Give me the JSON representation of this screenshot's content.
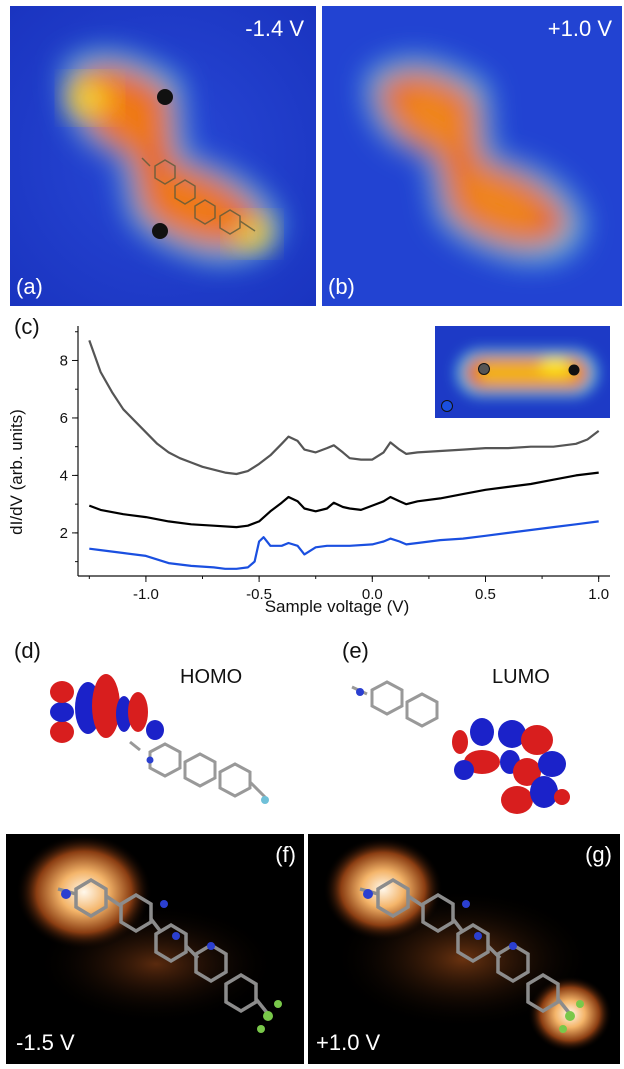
{
  "panels": {
    "a": {
      "label": "(a)",
      "voltage": "-1.4 V"
    },
    "b": {
      "label": "(b)",
      "voltage": "+1.0 V"
    },
    "c": {
      "label": "(c)"
    },
    "d": {
      "label": "(d)",
      "orbital": "HOMO"
    },
    "e": {
      "label": "(e)",
      "orbital": "LUMO"
    },
    "f": {
      "label": "(f)",
      "voltage": "-1.5 V"
    },
    "g": {
      "label": "(g)",
      "voltage": "+1.0 V"
    }
  },
  "colors": {
    "stm_background": "#1f3cc9",
    "series_top": "#555555",
    "series_middle": "#000000",
    "series_bottom": "#1a4fe0",
    "homo_lobe_red": "#d81e1e",
    "homo_lobe_blue": "#1b22c9",
    "sim_glow": "#f4a24a"
  },
  "chart_data": {
    "type": "line",
    "xlabel": "Sample voltage (V)",
    "ylabel": "dI/dV (arb. units)",
    "xlim": [
      -1.3,
      1.05
    ],
    "ylim": [
      0.5,
      9.2
    ],
    "xticks": [
      "-1.0",
      "-0.5",
      "0.0",
      "0.5",
      "1.0"
    ],
    "xtick_values": [
      -1.0,
      -0.5,
      0.0,
      0.5,
      1.0
    ],
    "yticks": [
      "2",
      "4",
      "6",
      "8"
    ],
    "ytick_values": [
      2,
      4,
      6,
      8
    ],
    "grid": false,
    "series": [
      {
        "color": "#555555",
        "x": [
          -1.25,
          -1.2,
          -1.15,
          -1.1,
          -1.05,
          -1.0,
          -0.95,
          -0.9,
          -0.85,
          -0.8,
          -0.75,
          -0.7,
          -0.65,
          -0.6,
          -0.55,
          -0.5,
          -0.45,
          -0.4,
          -0.37,
          -0.33,
          -0.3,
          -0.25,
          -0.2,
          -0.17,
          -0.13,
          -0.1,
          -0.05,
          0.0,
          0.05,
          0.08,
          0.12,
          0.15,
          0.2,
          0.3,
          0.4,
          0.5,
          0.6,
          0.7,
          0.8,
          0.9,
          0.95,
          1.0
        ],
        "y": [
          8.7,
          7.6,
          6.9,
          6.3,
          5.9,
          5.5,
          5.1,
          4.8,
          4.6,
          4.45,
          4.3,
          4.2,
          4.1,
          4.05,
          4.15,
          4.4,
          4.7,
          5.1,
          5.35,
          5.2,
          4.9,
          4.8,
          4.95,
          5.05,
          4.8,
          4.6,
          4.55,
          4.55,
          4.8,
          5.15,
          4.9,
          4.75,
          4.8,
          4.85,
          4.9,
          4.95,
          4.95,
          5.0,
          5.0,
          5.1,
          5.25,
          5.55
        ]
      },
      {
        "color": "#000000",
        "x": [
          -1.25,
          -1.2,
          -1.1,
          -1.0,
          -0.9,
          -0.8,
          -0.7,
          -0.6,
          -0.55,
          -0.5,
          -0.45,
          -0.4,
          -0.37,
          -0.33,
          -0.3,
          -0.25,
          -0.2,
          -0.17,
          -0.13,
          -0.1,
          -0.05,
          0.0,
          0.05,
          0.08,
          0.12,
          0.15,
          0.2,
          0.3,
          0.4,
          0.5,
          0.6,
          0.7,
          0.8,
          0.9,
          1.0
        ],
        "y": [
          2.95,
          2.8,
          2.65,
          2.55,
          2.4,
          2.3,
          2.25,
          2.2,
          2.25,
          2.4,
          2.75,
          3.05,
          3.25,
          3.1,
          2.85,
          2.75,
          2.85,
          3.05,
          2.9,
          2.85,
          2.8,
          2.95,
          3.1,
          3.25,
          3.1,
          3.0,
          3.1,
          3.2,
          3.35,
          3.5,
          3.6,
          3.7,
          3.85,
          4.0,
          4.1
        ]
      },
      {
        "color": "#1a4fe0",
        "x": [
          -1.25,
          -1.2,
          -1.1,
          -1.0,
          -0.9,
          -0.8,
          -0.7,
          -0.65,
          -0.6,
          -0.55,
          -0.52,
          -0.5,
          -0.48,
          -0.45,
          -0.4,
          -0.37,
          -0.33,
          -0.3,
          -0.25,
          -0.2,
          -0.1,
          0.0,
          0.05,
          0.08,
          0.12,
          0.15,
          0.2,
          0.3,
          0.4,
          0.5,
          0.6,
          0.7,
          0.8,
          0.9,
          1.0
        ],
        "y": [
          1.45,
          1.4,
          1.3,
          1.2,
          0.95,
          0.85,
          0.8,
          0.75,
          0.75,
          0.8,
          1.0,
          1.7,
          1.85,
          1.55,
          1.55,
          1.65,
          1.55,
          1.25,
          1.5,
          1.55,
          1.55,
          1.6,
          1.7,
          1.8,
          1.7,
          1.6,
          1.65,
          1.75,
          1.8,
          1.9,
          2.0,
          2.1,
          2.2,
          2.3,
          2.4
        ]
      }
    ]
  }
}
